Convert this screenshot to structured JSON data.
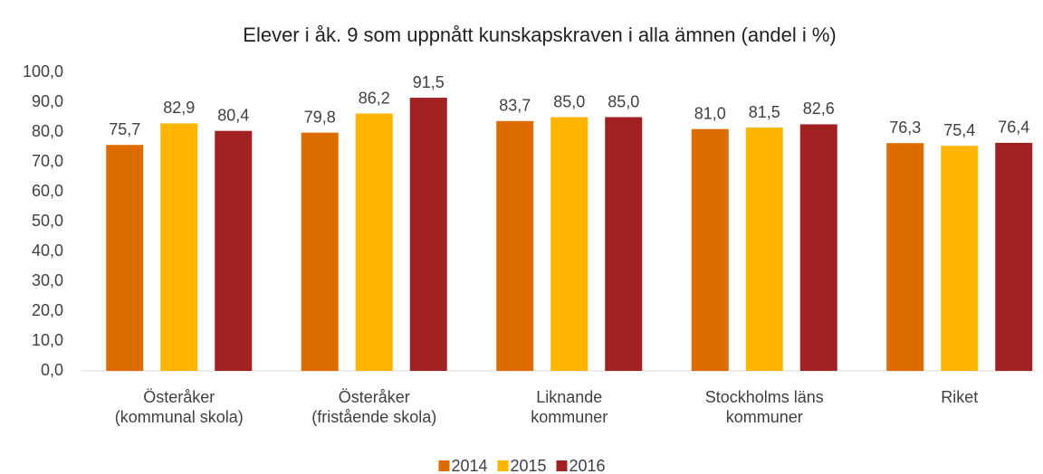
{
  "chart_data": {
    "type": "bar",
    "title": "Elever i åk. 9 som uppnått kunskapskraven i alla ämnen (andel i %)",
    "categories": [
      "Österåker\n(kommunal skola)",
      "Österåker\n(fristående skola)",
      "Liknande\nkommuner",
      "Stockholms läns\nkommuner",
      "Riket"
    ],
    "series": [
      {
        "name": "2014",
        "color": "#dc6c00",
        "values": [
          75.7,
          79.8,
          83.7,
          81.0,
          76.3
        ],
        "value_labels": [
          "75,7",
          "79,8",
          "83,7",
          "81,0",
          "76,3"
        ]
      },
      {
        "name": "2015",
        "color": "#ffb500",
        "values": [
          82.9,
          86.2,
          85.0,
          81.5,
          75.4
        ],
        "value_labels": [
          "82,9",
          "86,2",
          "85,0",
          "81,5",
          "75,4"
        ]
      },
      {
        "name": "2016",
        "color": "#a12022",
        "values": [
          80.4,
          91.5,
          85.0,
          82.6,
          76.4
        ],
        "value_labels": [
          "80,4",
          "91,5",
          "85,0",
          "82,6",
          "76,4"
        ]
      }
    ],
    "ylim": [
      0,
      100
    ],
    "yticks": [
      {
        "value": 0,
        "label": "0,0"
      },
      {
        "value": 10,
        "label": "10,0"
      },
      {
        "value": 20,
        "label": "20,0"
      },
      {
        "value": 30,
        "label": "30,0"
      },
      {
        "value": 40,
        "label": "40,0"
      },
      {
        "value": 50,
        "label": "50,0"
      },
      {
        "value": 60,
        "label": "60,0"
      },
      {
        "value": 70,
        "label": "70,0"
      },
      {
        "value": 80,
        "label": "80,0"
      },
      {
        "value": 90,
        "label": "90,0"
      },
      {
        "value": 100,
        "label": "100,0"
      }
    ],
    "grid": false,
    "legend": "bottom"
  }
}
